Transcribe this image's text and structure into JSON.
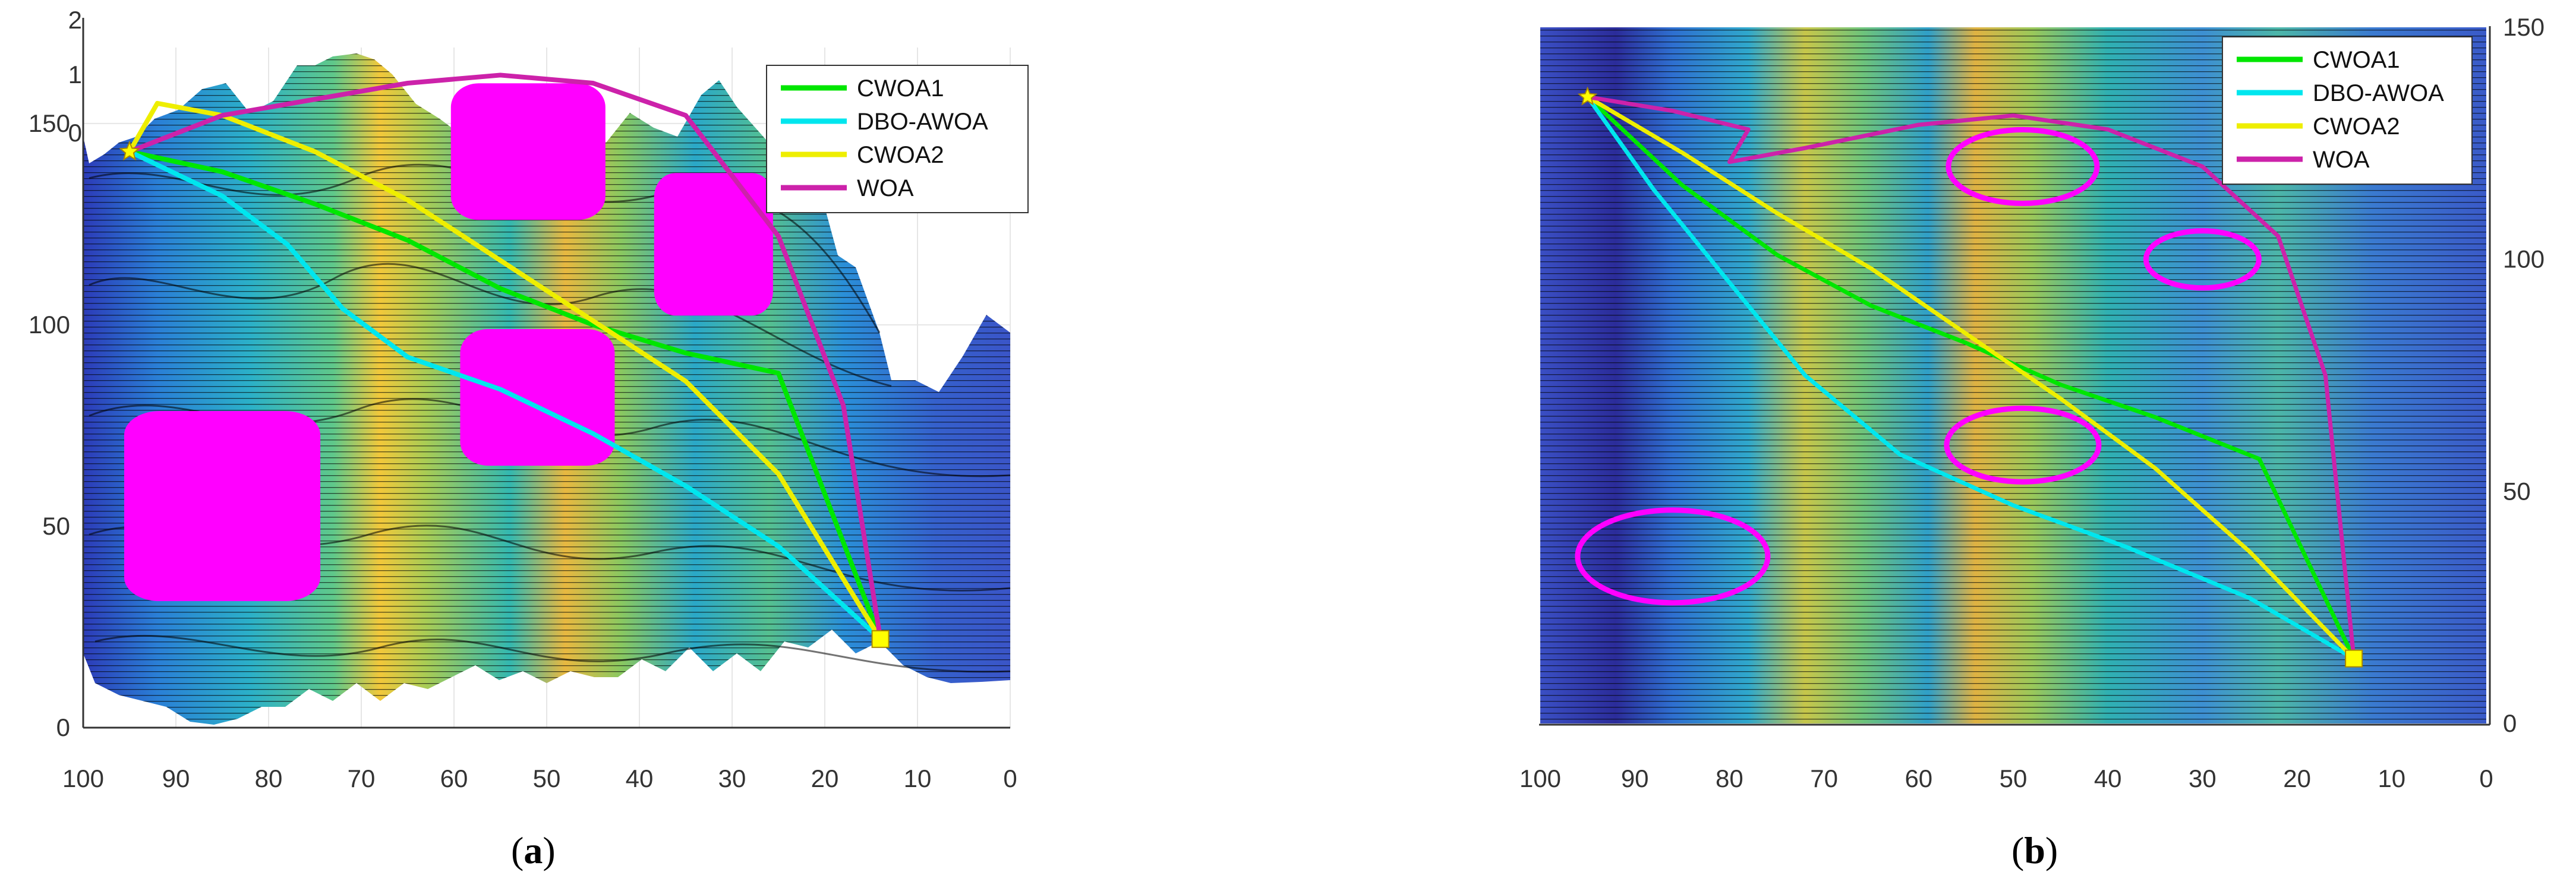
{
  "figure": {
    "captions": [
      {
        "open": "(",
        "letter": "a",
        "close": ")"
      },
      {
        "open": "(",
        "letter": "b",
        "close": ")"
      }
    ]
  },
  "chart_data": [
    {
      "type": "line",
      "panel": "a",
      "view": "3d-surface",
      "x_ticks": [
        "100",
        "90",
        "80",
        "70",
        "60",
        "50",
        "40",
        "30",
        "20",
        "10",
        "0"
      ],
      "y_ticks": [
        "0",
        "50",
        "100",
        "150"
      ],
      "z_ticks": [
        "0",
        "1",
        "2"
      ],
      "xlim": [
        100,
        0
      ],
      "ylim": [
        0,
        160
      ],
      "zlim": [
        0,
        2
      ],
      "start": [
        95,
        143
      ],
      "goal": [
        14,
        22
      ],
      "series": [
        {
          "name": "CWOA1",
          "color": "#00e600",
          "points": [
            [
              95,
              143
            ],
            [
              85,
              138
            ],
            [
              75,
              130
            ],
            [
              65,
              121
            ],
            [
              55,
              109
            ],
            [
              45,
              100
            ],
            [
              35,
              93
            ],
            [
              25,
              88
            ],
            [
              14,
              22
            ]
          ]
        },
        {
          "name": "DBO-AWOA",
          "color": "#00e6ee",
          "points": [
            [
              95,
              143
            ],
            [
              85,
              132
            ],
            [
              78,
              120
            ],
            [
              72,
              104
            ],
            [
              65,
              92
            ],
            [
              55,
              84
            ],
            [
              45,
              73
            ],
            [
              35,
              60
            ],
            [
              25,
              45
            ],
            [
              14,
              22
            ]
          ]
        },
        {
          "name": "CWOA2",
          "color": "#eeee00",
          "points": [
            [
              95,
              143
            ],
            [
              92,
              155
            ],
            [
              85,
              152
            ],
            [
              75,
              143
            ],
            [
              65,
              131
            ],
            [
              55,
              116
            ],
            [
              45,
              101
            ],
            [
              35,
              86
            ],
            [
              25,
              63
            ],
            [
              14,
              22
            ]
          ]
        },
        {
          "name": "WOA",
          "color": "#cc22aa",
          "points": [
            [
              95,
              143
            ],
            [
              85,
              152
            ],
            [
              75,
              156
            ],
            [
              65,
              160
            ],
            [
              55,
              162
            ],
            [
              45,
              160
            ],
            [
              35,
              152
            ],
            [
              25,
              122
            ],
            [
              18,
              80
            ],
            [
              14,
              22
            ]
          ]
        }
      ],
      "obstacles": [
        {
          "type": "cylinder",
          "cx": 85,
          "cy": 55,
          "color": "#ff00ff"
        },
        {
          "type": "cylinder",
          "cx": 52,
          "cy": 143,
          "color": "#ff00ff"
        },
        {
          "type": "cylinder",
          "cx": 32,
          "cy": 120,
          "color": "#ff00ff"
        },
        {
          "type": "cylinder",
          "cx": 51,
          "cy": 82,
          "color": "#ff00ff"
        }
      ],
      "legend_position": "top-right",
      "grid": true
    },
    {
      "type": "line",
      "panel": "b",
      "view": "top-down-contour",
      "x_ticks": [
        "100",
        "90",
        "80",
        "70",
        "60",
        "50",
        "40",
        "30",
        "20",
        "10",
        "0"
      ],
      "y_ticks": [
        "0",
        "50",
        "100",
        "150"
      ],
      "xlim": [
        100,
        0
      ],
      "ylim": [
        0,
        150
      ],
      "start": [
        95,
        135
      ],
      "goal": [
        14,
        14
      ],
      "series": [
        {
          "name": "CWOA1",
          "color": "#00e600",
          "points": [
            [
              95,
              135
            ],
            [
              85,
              116
            ],
            [
              75,
              101
            ],
            [
              65,
              90
            ],
            [
              55,
              82
            ],
            [
              45,
              73
            ],
            [
              35,
              66
            ],
            [
              24,
              57
            ],
            [
              14,
              14
            ]
          ]
        },
        {
          "name": "DBO-AWOA",
          "color": "#00e6ee",
          "points": [
            [
              95,
              135
            ],
            [
              88,
              115
            ],
            [
              80,
              95
            ],
            [
              72,
              75
            ],
            [
              62,
              58
            ],
            [
              50,
              47
            ],
            [
              38,
              38
            ],
            [
              25,
              27
            ],
            [
              14,
              14
            ]
          ]
        },
        {
          "name": "CWOA2",
          "color": "#eeee00",
          "points": [
            [
              95,
              135
            ],
            [
              85,
              123
            ],
            [
              75,
              110
            ],
            [
              65,
              98
            ],
            [
              55,
              84
            ],
            [
              45,
              70
            ],
            [
              35,
              55
            ],
            [
              25,
              37
            ],
            [
              14,
              14
            ]
          ]
        },
        {
          "name": "WOA",
          "color": "#cc22aa",
          "points": [
            [
              95,
              135
            ],
            [
              86,
              132
            ],
            [
              78,
              128
            ],
            [
              80,
              121
            ],
            [
              72,
              124
            ],
            [
              60,
              129
            ],
            [
              50,
              131
            ],
            [
              40,
              128
            ],
            [
              30,
              120
            ],
            [
              22,
              105
            ],
            [
              17,
              75
            ],
            [
              14,
              14
            ]
          ]
        }
      ],
      "obstacles": [
        {
          "type": "circle",
          "cx": 86,
          "cy": 36,
          "color": "#ff00ff"
        },
        {
          "type": "circle",
          "cx": 49,
          "cy": 120,
          "color": "#ff00ff"
        },
        {
          "type": "circle",
          "cx": 30,
          "cy": 100,
          "color": "#ff00ff"
        },
        {
          "type": "circle",
          "cx": 49,
          "cy": 60,
          "color": "#ff00ff"
        }
      ],
      "legend_position": "top-right",
      "grid": false
    }
  ]
}
